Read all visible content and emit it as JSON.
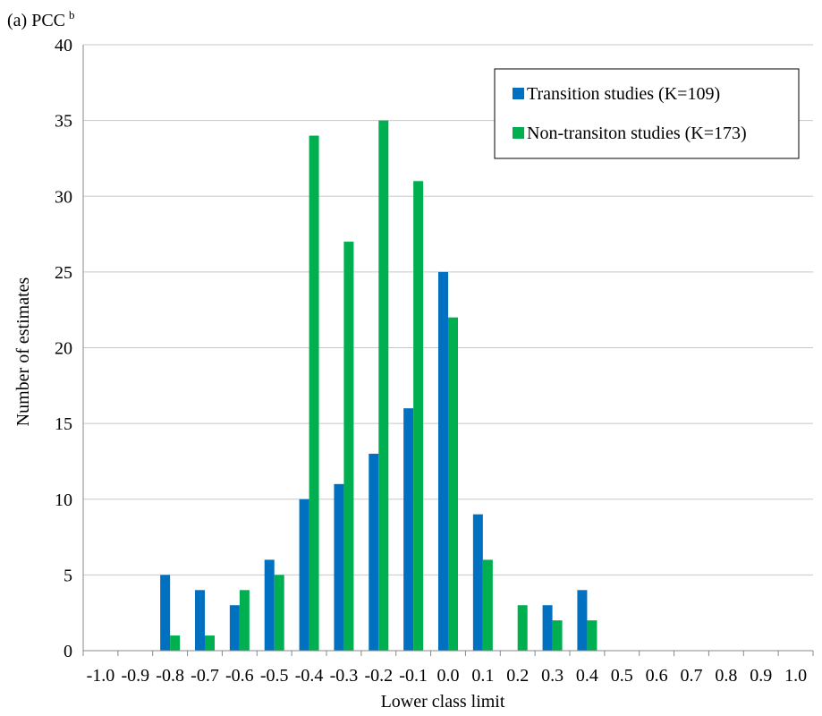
{
  "chart_data": {
    "type": "bar",
    "title": "(a) PCC",
    "title_superscript": "b",
    "xlabel": "Lower class limit",
    "ylabel": "Number of estimates",
    "ylim": [
      0,
      40
    ],
    "yticks": [
      0,
      5,
      10,
      15,
      20,
      25,
      30,
      35,
      40
    ],
    "categories": [
      "-1.0",
      "-0.9",
      "-0.8",
      "-0.7",
      "-0.6",
      "-0.5",
      "-0.4",
      "-0.3",
      "-0.2",
      "-0.1",
      "0.0",
      "0.1",
      "0.2",
      "0.3",
      "0.4",
      "0.5",
      "0.6",
      "0.7",
      "0.8",
      "0.9",
      "1.0"
    ],
    "series": [
      {
        "name": "Transition studies (K=109)",
        "color": "#0070C0",
        "values": [
          0,
          0,
          5,
          4,
          3,
          6,
          10,
          11,
          13,
          16,
          25,
          9,
          0,
          3,
          4,
          0,
          0,
          0,
          0,
          0,
          0
        ]
      },
      {
        "name": "Non-transiton studies (K=173)",
        "color": "#00B050",
        "values": [
          0,
          0,
          1,
          1,
          4,
          5,
          34,
          27,
          35,
          31,
          22,
          6,
          3,
          2,
          2,
          0,
          0,
          0,
          0,
          0,
          0
        ]
      }
    ],
    "grid": true,
    "legend_position": "top-right"
  }
}
